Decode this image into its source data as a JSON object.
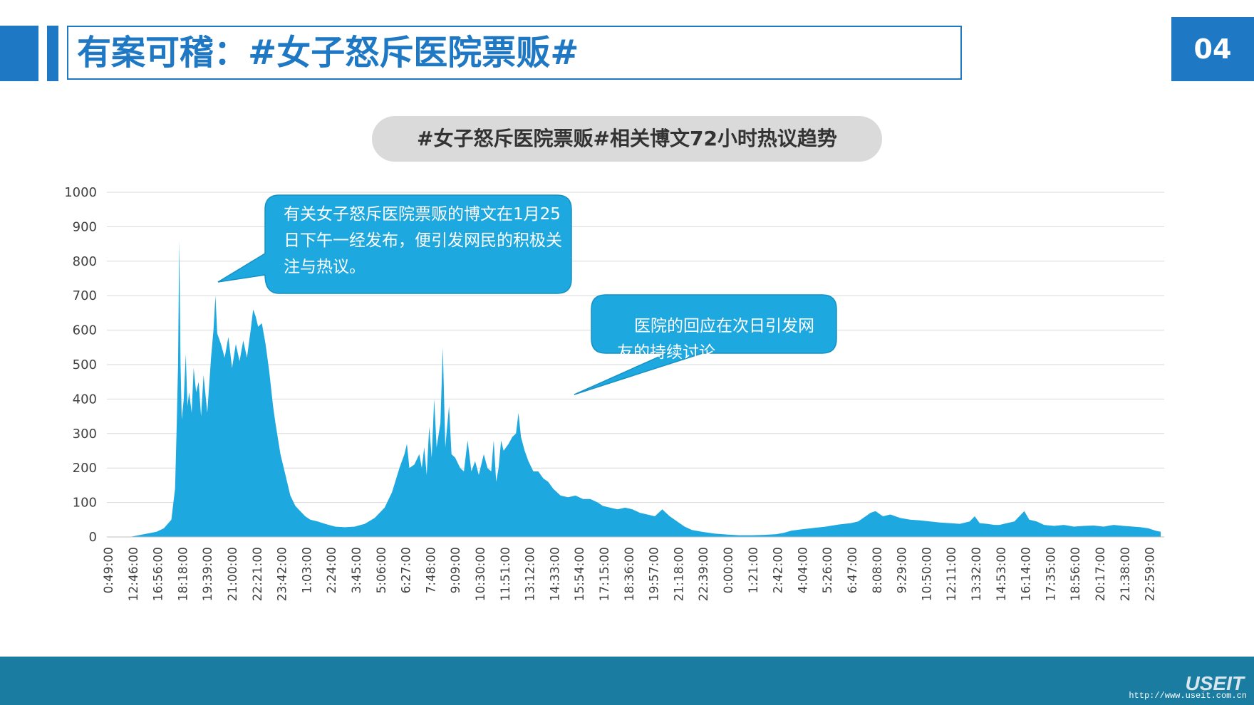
{
  "header": {
    "title": "有案可稽：#女子怒斥医院票贩#",
    "page_number": "04"
  },
  "colors": {
    "brand_blue": "#1f78c3",
    "area_fill": "#1ea8e0",
    "callout": "#1ea8e0",
    "footer": "#1a7ca0"
  },
  "callouts": {
    "first": "有关女子怒斥医院票贩的博文在1月25日下午一经发布，便引发网民的积极关注与热议。",
    "second": "医院的回应在次日引发网友的持续讨论。"
  },
  "footer": {
    "brand": "USEIT",
    "url": "http://www.useit.com.cn"
  },
  "chart_data": {
    "type": "area",
    "title": "#女子怒斥医院票贩#相关博文72小时热议趋势",
    "ylim": [
      0,
      1000
    ],
    "yticks": [
      0,
      100,
      200,
      300,
      400,
      500,
      600,
      700,
      800,
      900,
      1000
    ],
    "grid": true,
    "x_tick_labels": [
      "0:49:00",
      "12:46:00",
      "16:56:00",
      "18:18:00",
      "19:39:00",
      "21:00:00",
      "22:21:00",
      "23:42:00",
      "1:03:00",
      "2:24:00",
      "3:45:00",
      "5:06:00",
      "6:27:00",
      "7:48:00",
      "9:09:00",
      "10:30:00",
      "11:51:00",
      "13:12:00",
      "14:33:00",
      "15:54:00",
      "17:15:00",
      "18:36:00",
      "19:57:00",
      "21:18:00",
      "22:39:00",
      "0:00:00",
      "1:21:00",
      "2:42:00",
      "4:04:00",
      "5:26:00",
      "6:47:00",
      "8:08:00",
      "9:29:00",
      "10:50:00",
      "12:11:00",
      "13:32:00",
      "14:53:00",
      "16:14:00",
      "17:35:00",
      "18:56:00",
      "20:17:00",
      "21:38:00",
      "22:59:00"
    ],
    "series": [
      {
        "values": [
          [
            0,
            0
          ],
          [
            1,
            1
          ],
          [
            1.5,
            8
          ],
          [
            2,
            15
          ],
          [
            2.3,
            25
          ],
          [
            2.6,
            50
          ],
          [
            2.75,
            140
          ],
          [
            2.82,
            330
          ],
          [
            2.87,
            500
          ],
          [
            2.92,
            860
          ],
          [
            2.97,
            500
          ],
          [
            3.02,
            340
          ],
          [
            3.1,
            400
          ],
          [
            3.18,
            530
          ],
          [
            3.25,
            380
          ],
          [
            3.32,
            420
          ],
          [
            3.42,
            360
          ],
          [
            3.5,
            490
          ],
          [
            3.6,
            420
          ],
          [
            3.7,
            450
          ],
          [
            3.8,
            350
          ],
          [
            3.9,
            470
          ],
          [
            4.05,
            360
          ],
          [
            4.2,
            520
          ],
          [
            4.3,
            600
          ],
          [
            4.38,
            700
          ],
          [
            4.45,
            590
          ],
          [
            4.6,
            560
          ],
          [
            4.75,
            520
          ],
          [
            4.9,
            580
          ],
          [
            5.05,
            490
          ],
          [
            5.2,
            560
          ],
          [
            5.35,
            510
          ],
          [
            5.5,
            570
          ],
          [
            5.65,
            520
          ],
          [
            5.8,
            600
          ],
          [
            5.9,
            660
          ],
          [
            6.0,
            640
          ],
          [
            6.1,
            610
          ],
          [
            6.25,
            620
          ],
          [
            6.4,
            560
          ],
          [
            6.55,
            480
          ],
          [
            6.7,
            380
          ],
          [
            6.8,
            330
          ],
          [
            7.0,
            240
          ],
          [
            7.2,
            180
          ],
          [
            7.4,
            120
          ],
          [
            7.6,
            90
          ],
          [
            7.8,
            75
          ],
          [
            8.0,
            60
          ],
          [
            8.2,
            50
          ],
          [
            8.5,
            45
          ],
          [
            8.8,
            38
          ],
          [
            9.2,
            30
          ],
          [
            9.6,
            28
          ],
          [
            10.0,
            30
          ],
          [
            10.4,
            38
          ],
          [
            10.8,
            55
          ],
          [
            11.2,
            85
          ],
          [
            11.5,
            130
          ],
          [
            11.8,
            200
          ],
          [
            12.0,
            240
          ],
          [
            12.1,
            270
          ],
          [
            12.2,
            200
          ],
          [
            12.4,
            210
          ],
          [
            12.6,
            240
          ],
          [
            12.7,
            200
          ],
          [
            12.8,
            260
          ],
          [
            12.9,
            180
          ],
          [
            13.0,
            320
          ],
          [
            13.1,
            230
          ],
          [
            13.2,
            400
          ],
          [
            13.3,
            260
          ],
          [
            13.45,
            330
          ],
          [
            13.55,
            550
          ],
          [
            13.65,
            260
          ],
          [
            13.8,
            380
          ],
          [
            13.9,
            240
          ],
          [
            14.05,
            230
          ],
          [
            14.25,
            200
          ],
          [
            14.4,
            190
          ],
          [
            14.55,
            280
          ],
          [
            14.7,
            190
          ],
          [
            14.85,
            220
          ],
          [
            15.0,
            180
          ],
          [
            15.2,
            240
          ],
          [
            15.35,
            200
          ],
          [
            15.5,
            190
          ],
          [
            15.6,
            280
          ],
          [
            15.7,
            160
          ],
          [
            15.8,
            200
          ],
          [
            15.9,
            280
          ],
          [
            16.0,
            250
          ],
          [
            16.2,
            270
          ],
          [
            16.35,
            290
          ],
          [
            16.5,
            300
          ],
          [
            16.6,
            360
          ],
          [
            16.7,
            290
          ],
          [
            16.85,
            250
          ],
          [
            17.0,
            220
          ],
          [
            17.2,
            190
          ],
          [
            17.4,
            190
          ],
          [
            17.6,
            170
          ],
          [
            17.8,
            160
          ],
          [
            18.0,
            140
          ],
          [
            18.3,
            120
          ],
          [
            18.6,
            115
          ],
          [
            18.9,
            120
          ],
          [
            19.2,
            110
          ],
          [
            19.5,
            110
          ],
          [
            19.8,
            100
          ],
          [
            20.0,
            90
          ],
          [
            20.3,
            85
          ],
          [
            20.6,
            80
          ],
          [
            20.9,
            85
          ],
          [
            21.2,
            80
          ],
          [
            21.5,
            70
          ],
          [
            21.8,
            65
          ],
          [
            22.1,
            60
          ],
          [
            22.4,
            80
          ],
          [
            22.7,
            60
          ],
          [
            23.0,
            45
          ],
          [
            23.3,
            30
          ],
          [
            23.6,
            20
          ],
          [
            24.0,
            15
          ],
          [
            24.5,
            10
          ],
          [
            25.0,
            7
          ],
          [
            25.5,
            5
          ],
          [
            26.0,
            5
          ],
          [
            26.5,
            6
          ],
          [
            27.0,
            8
          ],
          [
            27.3,
            12
          ],
          [
            27.6,
            18
          ],
          [
            28.0,
            22
          ],
          [
            28.5,
            26
          ],
          [
            29.0,
            30
          ],
          [
            29.5,
            36
          ],
          [
            30.0,
            40
          ],
          [
            30.3,
            45
          ],
          [
            30.6,
            60
          ],
          [
            30.8,
            70
          ],
          [
            31.0,
            75
          ],
          [
            31.3,
            60
          ],
          [
            31.6,
            65
          ],
          [
            32.0,
            55
          ],
          [
            32.4,
            50
          ],
          [
            32.8,
            48
          ],
          [
            33.2,
            45
          ],
          [
            33.6,
            42
          ],
          [
            34.0,
            40
          ],
          [
            34.4,
            38
          ],
          [
            34.8,
            45
          ],
          [
            35.0,
            60
          ],
          [
            35.2,
            40
          ],
          [
            35.5,
            38
          ],
          [
            35.8,
            35
          ],
          [
            36.0,
            35
          ],
          [
            36.3,
            40
          ],
          [
            36.6,
            45
          ],
          [
            36.8,
            60
          ],
          [
            37.0,
            75
          ],
          [
            37.2,
            50
          ],
          [
            37.5,
            45
          ],
          [
            37.8,
            35
          ],
          [
            38.2,
            32
          ],
          [
            38.6,
            35
          ],
          [
            39.0,
            30
          ],
          [
            39.4,
            32
          ],
          [
            39.8,
            33
          ],
          [
            40.2,
            30
          ],
          [
            40.6,
            35
          ],
          [
            41.0,
            32
          ],
          [
            41.4,
            30
          ],
          [
            41.7,
            28
          ],
          [
            42.0,
            25
          ],
          [
            42.3,
            18
          ],
          [
            42.5,
            15
          ]
        ]
      }
    ]
  }
}
